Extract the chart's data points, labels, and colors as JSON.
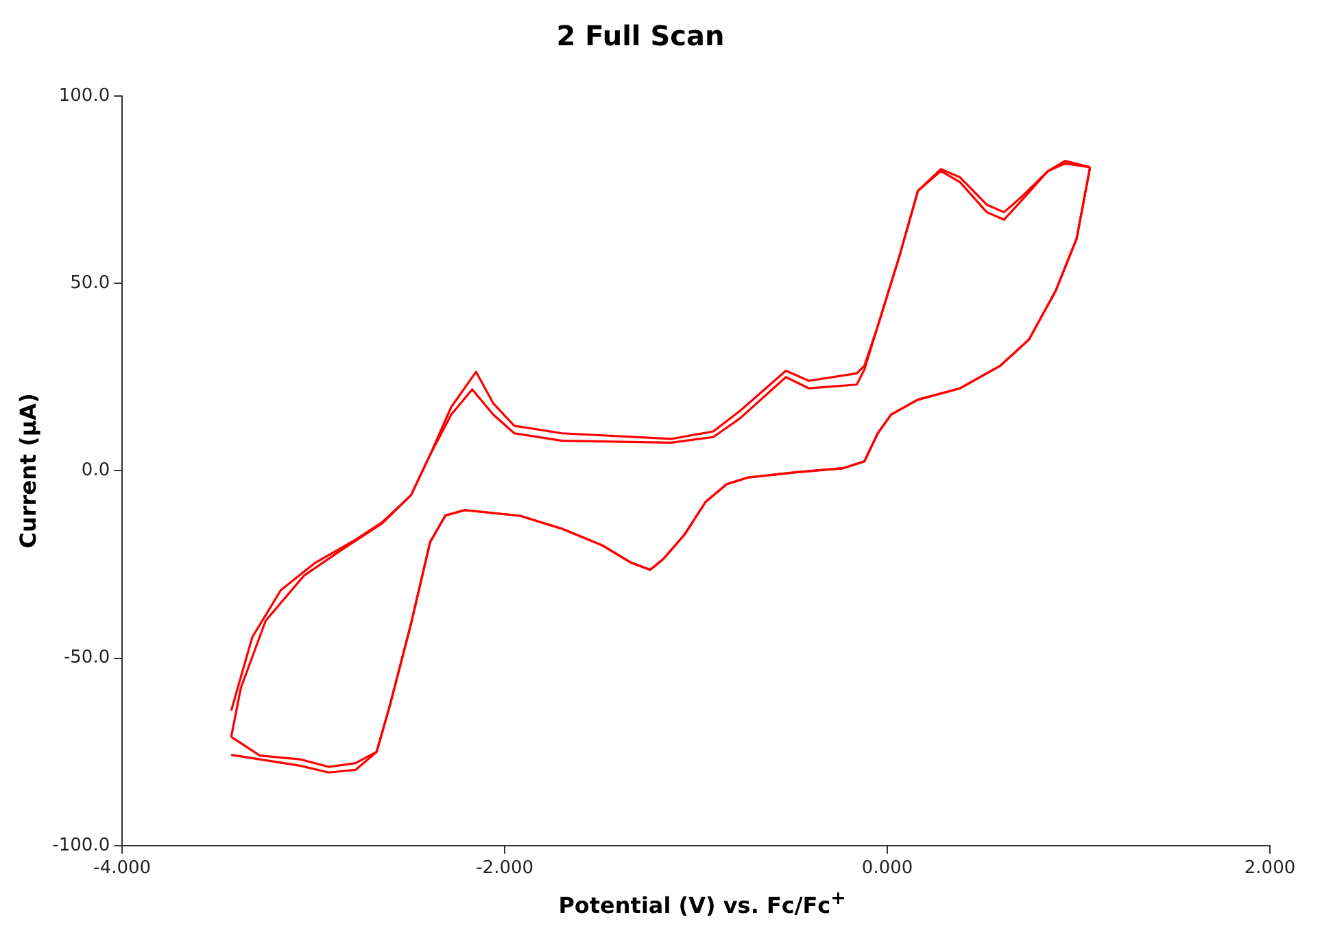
{
  "chart_data": {
    "type": "line",
    "title": "2 Full Scan",
    "xlabel": "Potential (V) vs. Fc/Fc$^{+}$",
    "ylabel": "Current (µA)",
    "xlim": [
      -4,
      2
    ],
    "xticks": [
      {
        "value": -4,
        "label": "-4.000"
      },
      {
        "value": -2,
        "label": "-2.000"
      },
      {
        "value": 0,
        "label": "0.000"
      },
      {
        "value": 2,
        "label": "2.000"
      }
    ],
    "ylim": [
      -100,
      100
    ],
    "yticks": [
      {
        "value": -100,
        "label": "-100.0"
      },
      {
        "value": -50,
        "label": "-50.0"
      },
      {
        "value": 0,
        "label": "0.0"
      },
      {
        "value": 50,
        "label": "50.0"
      },
      {
        "value": 100,
        "label": "100.0"
      }
    ],
    "grid": false,
    "legend": false,
    "marker": "none",
    "line_style": "solid",
    "series": [
      {
        "color": "#ff0000",
        "x": [
          -3.43,
          -3.28,
          -3.07,
          -2.92,
          -2.78,
          -2.67,
          -2.6,
          -2.49,
          -2.39,
          -2.31,
          -2.21,
          -1.92,
          -1.7,
          -1.49,
          -1.34,
          -1.24,
          -1.17,
          -1.06,
          -0.95,
          -0.84,
          -0.73,
          -0.48,
          -0.23,
          -0.12,
          -0.05,
          0.02,
          0.16,
          0.38,
          0.59,
          0.74,
          0.88,
          0.99,
          1.06
        ],
        "values": [
          -75.8,
          -77,
          -78.7,
          -80.5,
          -79.8,
          -75,
          -62.5,
          -40.8,
          -19,
          -11.9,
          -10.5,
          -12,
          -15.5,
          -19.9,
          -24.5,
          -26.4,
          -23.5,
          -17,
          -8.3,
          -3.6,
          -1.8,
          -0.4,
          0.7,
          2.5,
          10,
          15,
          19,
          22,
          28,
          35,
          48,
          62,
          81
        ]
      },
      {
        "color": "#ff0000",
        "x": [
          -3.43,
          -3.32,
          -3.17,
          -2.99,
          -2.78,
          -2.64,
          -2.49,
          -2.39,
          -2.28,
          -2.15,
          -2.06,
          -1.95,
          -1.7,
          -1.13,
          -0.91,
          -0.77,
          -0.53,
          -0.41,
          -0.16,
          -0.12,
          -0.05,
          0.06,
          0.16,
          0.28,
          0.38,
          0.52,
          0.61,
          0.7,
          0.84,
          0.93,
          1.06
        ],
        "values": [
          -64,
          -44.4,
          -31.8,
          -24.5,
          -18.4,
          -13.7,
          -6.5,
          4.3,
          17,
          26.4,
          18,
          12,
          10,
          8.5,
          10.5,
          16,
          26.7,
          24,
          26,
          28,
          38.6,
          56.7,
          74.7,
          80.5,
          78.3,
          71,
          69,
          73,
          80,
          82.7,
          81
        ]
      },
      {
        "color": "#ff0000",
        "x": [
          -3.43,
          -3.28,
          -3.07,
          -2.92,
          -2.78,
          -2.67,
          -2.6,
          -2.49,
          -2.39,
          -2.31,
          -2.21,
          -1.92,
          -1.7,
          -1.49,
          -1.34,
          -1.24,
          -1.17,
          -1.06,
          -0.95,
          -0.84,
          -0.73,
          -0.48,
          -0.23,
          -0.12,
          -0.05,
          0.02,
          0.16,
          0.38,
          0.59,
          0.74,
          0.88,
          0.99,
          1.06
        ],
        "values": [
          -71,
          -76,
          -77,
          -79,
          -78,
          -75,
          -62.5,
          -40.8,
          -19,
          -11.9,
          -10.5,
          -12,
          -15.5,
          -19.9,
          -24.5,
          -26.4,
          -23.5,
          -17,
          -8.3,
          -3.6,
          -1.8,
          -0.4,
          0.7,
          2.5,
          10,
          15,
          19,
          22,
          28,
          35,
          48,
          62,
          81
        ]
      },
      {
        "color": "#ff0000",
        "x": [
          -3.43,
          -3.38,
          -3.25,
          -3.05,
          -2.85,
          -2.64,
          -2.49,
          -2.39,
          -2.28,
          -2.17,
          -2.06,
          -1.95,
          -1.7,
          -1.13,
          -0.91,
          -0.77,
          -0.53,
          -0.41,
          -0.16,
          -0.12,
          -0.05,
          0.06,
          0.16,
          0.28,
          0.38,
          0.52,
          0.61,
          0.7,
          0.84,
          0.93,
          1.06
        ],
        "values": [
          -71,
          -58,
          -40,
          -28,
          -21,
          -14,
          -6.5,
          4.3,
          15,
          21.7,
          15,
          10,
          8,
          7.5,
          9,
          14,
          25,
          22,
          23,
          27,
          38.6,
          56.7,
          74.7,
          80,
          77,
          69,
          67,
          72,
          80,
          82,
          81
        ]
      }
    ]
  }
}
